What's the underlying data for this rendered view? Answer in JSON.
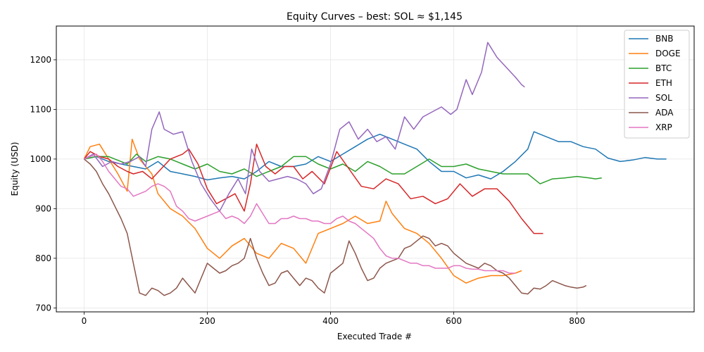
{
  "chart_data": {
    "type": "line",
    "title": "Equity Curves – best: SOL ≈ $1,145",
    "xlabel": "Executed Trade #",
    "ylabel": "Equity (USD)",
    "xlim": [
      -45,
      990
    ],
    "ylim": [
      692,
      1268
    ],
    "xticks": [
      0,
      200,
      400,
      600,
      800
    ],
    "yticks": [
      700,
      800,
      900,
      1000,
      1100,
      1200
    ],
    "grid": true,
    "legend_position": "top-right",
    "series": [
      {
        "name": "BNB",
        "color": "#1f77b4",
        "x": [
          0,
          20,
          40,
          60,
          80,
          100,
          120,
          140,
          160,
          180,
          200,
          220,
          240,
          260,
          280,
          300,
          320,
          340,
          360,
          380,
          400,
          420,
          440,
          460,
          480,
          500,
          520,
          540,
          560,
          580,
          600,
          620,
          640,
          660,
          680,
          700,
          720,
          730,
          750,
          770,
          790,
          810,
          830,
          850,
          870,
          890,
          910,
          930,
          945
        ],
        "y": [
          1000,
          1005,
          995,
          990,
          985,
          980,
          995,
          975,
          970,
          965,
          958,
          962,
          965,
          960,
          975,
          995,
          985,
          985,
          990,
          1005,
          995,
          1010,
          1025,
          1040,
          1050,
          1040,
          1030,
          1020,
          995,
          975,
          975,
          962,
          968,
          960,
          975,
          995,
          1020,
          1055,
          1045,
          1035,
          1035,
          1025,
          1020,
          1002,
          995,
          998,
          1003,
          1000,
          1000
        ]
      },
      {
        "name": "DOGE",
        "color": "#ff7f0e",
        "x": [
          0,
          10,
          25,
          40,
          55,
          70,
          78,
          90,
          100,
          110,
          120,
          140,
          160,
          180,
          200,
          220,
          240,
          260,
          280,
          300,
          320,
          340,
          360,
          380,
          400,
          420,
          440,
          460,
          480,
          490,
          500,
          520,
          540,
          560,
          580,
          600,
          620,
          640,
          660,
          680,
          700,
          710
        ],
        "y": [
          1000,
          1025,
          1030,
          1000,
          970,
          935,
          1040,
          1000,
          985,
          970,
          930,
          900,
          885,
          860,
          820,
          800,
          825,
          840,
          810,
          800,
          830,
          820,
          790,
          850,
          860,
          870,
          885,
          870,
          875,
          915,
          890,
          860,
          850,
          830,
          800,
          765,
          750,
          760,
          765,
          765,
          770,
          775
        ]
      },
      {
        "name": "BTC",
        "color": "#2ca02c",
        "x": [
          0,
          20,
          40,
          60,
          70,
          85,
          100,
          120,
          140,
          160,
          180,
          200,
          220,
          240,
          260,
          280,
          300,
          320,
          340,
          360,
          380,
          400,
          420,
          440,
          460,
          480,
          500,
          520,
          540,
          560,
          580,
          600,
          620,
          640,
          660,
          680,
          700,
          720,
          740,
          760,
          780,
          800,
          820,
          830,
          840
        ],
        "y": [
          1000,
          1005,
          1005,
          995,
          990,
          1010,
          995,
          1005,
          1000,
          990,
          980,
          990,
          975,
          970,
          980,
          965,
          975,
          985,
          1005,
          1005,
          990,
          980,
          990,
          975,
          995,
          985,
          970,
          970,
          985,
          1000,
          985,
          985,
          990,
          980,
          975,
          970,
          970,
          970,
          950,
          960,
          962,
          965,
          962,
          960,
          962
        ]
      },
      {
        "name": "ETH",
        "color": "#d62728",
        "x": [
          0,
          10,
          25,
          40,
          55,
          70,
          80,
          95,
          110,
          125,
          140,
          160,
          170,
          185,
          200,
          215,
          230,
          245,
          260,
          270,
          280,
          295,
          310,
          325,
          340,
          355,
          370,
          390,
          410,
          430,
          450,
          470,
          490,
          510,
          530,
          550,
          570,
          590,
          610,
          630,
          650,
          670,
          690,
          710,
          730,
          745
        ],
        "y": [
          1000,
          1015,
          1005,
          1000,
          985,
          975,
          970,
          975,
          960,
          980,
          1000,
          1010,
          1020,
          990,
          940,
          910,
          920,
          930,
          895,
          950,
          1030,
          985,
          970,
          985,
          985,
          960,
          975,
          950,
          1015,
          980,
          945,
          940,
          960,
          950,
          920,
          925,
          910,
          920,
          950,
          925,
          940,
          940,
          915,
          880,
          850,
          850
        ]
      },
      {
        "name": "SOL",
        "color": "#9467bd",
        "x": [
          0,
          15,
          30,
          45,
          60,
          75,
          90,
          100,
          110,
          122,
          130,
          145,
          160,
          175,
          190,
          205,
          220,
          235,
          250,
          262,
          272,
          285,
          300,
          315,
          330,
          345,
          360,
          372,
          385,
          400,
          415,
          430,
          445,
          460,
          475,
          490,
          505,
          520,
          535,
          550,
          565,
          580,
          595,
          605,
          620,
          630,
          645,
          655,
          670,
          685,
          700,
          710,
          715
        ],
        "y": [
          1000,
          1010,
          985,
          995,
          990,
          995,
          1005,
          985,
          1060,
          1095,
          1060,
          1050,
          1055,
          995,
          950,
          920,
          895,
          930,
          960,
          930,
          1020,
          975,
          955,
          960,
          965,
          960,
          950,
          930,
          940,
          990,
          1060,
          1075,
          1040,
          1060,
          1035,
          1045,
          1020,
          1085,
          1060,
          1085,
          1095,
          1105,
          1090,
          1100,
          1160,
          1130,
          1175,
          1235,
          1205,
          1185,
          1165,
          1150,
          1145
        ]
      },
      {
        "name": "ADA",
        "color": "#8c564b",
        "x": [
          0,
          10,
          20,
          30,
          40,
          50,
          60,
          70,
          80,
          90,
          100,
          110,
          120,
          130,
          140,
          150,
          160,
          170,
          180,
          190,
          200,
          210,
          220,
          230,
          240,
          250,
          260,
          270,
          280,
          290,
          300,
          310,
          320,
          330,
          340,
          350,
          360,
          370,
          380,
          390,
          400,
          410,
          420,
          430,
          440,
          450,
          460,
          470,
          480,
          490,
          500,
          510,
          520,
          530,
          540,
          550,
          560,
          570,
          580,
          590,
          600,
          610,
          620,
          630,
          640,
          650,
          660,
          670,
          680,
          690,
          700,
          710,
          720,
          730,
          740,
          750,
          760,
          770,
          780,
          790,
          800,
          810,
          815
        ],
        "y": [
          1000,
          990,
          975,
          950,
          930,
          905,
          880,
          850,
          790,
          730,
          725,
          740,
          735,
          725,
          730,
          740,
          760,
          745,
          730,
          760,
          790,
          780,
          770,
          775,
          785,
          790,
          800,
          840,
          800,
          770,
          745,
          750,
          770,
          775,
          760,
          745,
          760,
          755,
          740,
          730,
          770,
          780,
          790,
          835,
          810,
          780,
          755,
          760,
          780,
          790,
          795,
          800,
          820,
          825,
          835,
          845,
          840,
          825,
          830,
          825,
          810,
          800,
          790,
          785,
          780,
          790,
          785,
          775,
          770,
          760,
          745,
          730,
          728,
          740,
          738,
          745,
          755,
          750,
          745,
          742,
          740,
          742,
          745
        ]
      },
      {
        "name": "XRP",
        "color": "#e377c2",
        "x": [
          0,
          10,
          20,
          30,
          40,
          50,
          60,
          70,
          80,
          90,
          100,
          110,
          120,
          130,
          140,
          150,
          160,
          170,
          180,
          190,
          200,
          210,
          220,
          230,
          240,
          250,
          260,
          270,
          280,
          290,
          300,
          310,
          320,
          330,
          340,
          350,
          360,
          370,
          380,
          390,
          400,
          410,
          420,
          430,
          440,
          450,
          460,
          470,
          480,
          490,
          500,
          510,
          520,
          530,
          540,
          550,
          560,
          570,
          580,
          590,
          600,
          610,
          620,
          630,
          640,
          650,
          660,
          670,
          680,
          690,
          700
        ],
        "y": [
          1000,
          1005,
          1010,
          995,
          975,
          960,
          945,
          940,
          925,
          930,
          935,
          945,
          950,
          945,
          935,
          905,
          895,
          880,
          875,
          880,
          885,
          890,
          895,
          880,
          885,
          880,
          870,
          885,
          910,
          890,
          870,
          870,
          880,
          880,
          885,
          880,
          880,
          875,
          875,
          870,
          870,
          880,
          885,
          875,
          870,
          860,
          850,
          840,
          820,
          805,
          800,
          800,
          795,
          790,
          790,
          785,
          785,
          780,
          780,
          780,
          785,
          785,
          780,
          778,
          778,
          775,
          775,
          775,
          775,
          770,
          770
        ]
      }
    ]
  }
}
